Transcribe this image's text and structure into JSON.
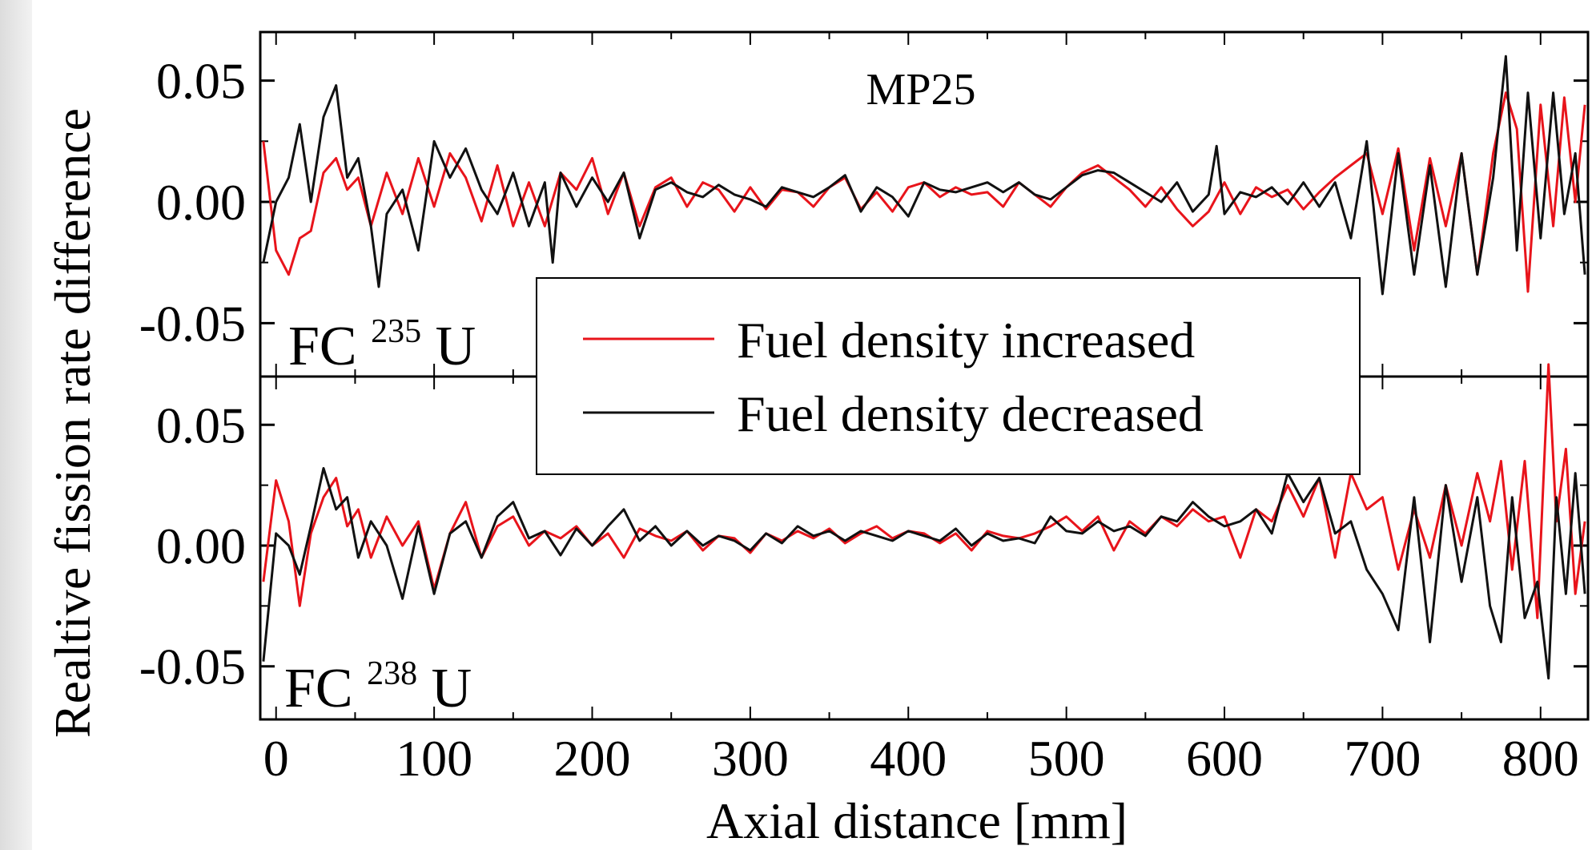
{
  "chart_data": {
    "type": "line",
    "title": "MP25",
    "xlabel": "Axial distance [mm]",
    "ylabel": "Realtive fission rate difference",
    "xlim": [
      -10,
      830
    ],
    "x_ticks": [
      "0",
      "100",
      "200",
      "300",
      "400",
      "500",
      "600",
      "700",
      "800"
    ],
    "y_tick_labels": [
      "0.05",
      "0.00",
      "-0.05"
    ],
    "legend": {
      "placement": "center, overlapping both panels",
      "entries": [
        "Fuel density increased",
        "Fuel density decreased"
      ]
    },
    "colors": {
      "increased": "#e8141b",
      "decreased": "#111111"
    },
    "panels": [
      {
        "label_prefix": "FC",
        "label_isotope_mass": "235",
        "label_isotope_symbol": "U",
        "ylim": [
          -0.072,
          0.07
        ],
        "series": [
          {
            "name": "Fuel density increased",
            "x": [
              -8,
              0,
              8,
              15,
              22,
              30,
              38,
              45,
              52,
              60,
              70,
              80,
              90,
              100,
              110,
              120,
              130,
              140,
              150,
              160,
              170,
              180,
              190,
              200,
              210,
              220,
              230,
              240,
              250,
              260,
              270,
              280,
              290,
              300,
              310,
              320,
              330,
              340,
              350,
              360,
              370,
              380,
              390,
              400,
              410,
              420,
              430,
              440,
              450,
              460,
              470,
              480,
              490,
              500,
              510,
              520,
              530,
              540,
              550,
              560,
              570,
              580,
              590,
              600,
              610,
              620,
              630,
              640,
              650,
              660,
              670,
              680,
              690,
              700,
              710,
              720,
              730,
              740,
              750,
              760,
              770,
              778,
              785,
              792,
              800,
              808,
              815,
              822,
              828
            ],
            "y": [
              0.025,
              -0.02,
              -0.03,
              -0.015,
              -0.012,
              0.012,
              0.018,
              0.005,
              0.01,
              -0.01,
              0.012,
              -0.005,
              0.018,
              -0.002,
              0.02,
              0.01,
              -0.008,
              0.015,
              -0.01,
              0.008,
              -0.01,
              0.012,
              0.005,
              0.018,
              -0.005,
              0.012,
              -0.01,
              0.006,
              0.01,
              -0.002,
              0.008,
              0.005,
              -0.004,
              0.006,
              -0.003,
              0.005,
              0.004,
              -0.002,
              0.006,
              0.01,
              -0.003,
              0.004,
              -0.004,
              0.006,
              0.008,
              0.002,
              0.006,
              0.003,
              0.004,
              -0.002,
              0.008,
              0.003,
              -0.002,
              0.006,
              0.012,
              0.015,
              0.01,
              0.005,
              -0.002,
              0.006,
              -0.003,
              -0.01,
              -0.004,
              0.008,
              -0.005,
              0.006,
              0.002,
              0.005,
              -0.003,
              0.004,
              0.01,
              0.015,
              0.02,
              -0.005,
              0.022,
              -0.02,
              0.018,
              -0.01,
              0.02,
              -0.03,
              0.02,
              0.045,
              0.03,
              -0.037,
              0.04,
              -0.01,
              0.043,
              0.0,
              0.04
            ]
          },
          {
            "name": "Fuel density decreased",
            "x": [
              -8,
              0,
              8,
              15,
              22,
              30,
              38,
              45,
              52,
              60,
              65,
              70,
              80,
              90,
              100,
              110,
              120,
              130,
              140,
              150,
              160,
              170,
              175,
              180,
              190,
              200,
              210,
              220,
              230,
              240,
              250,
              260,
              270,
              280,
              290,
              300,
              310,
              320,
              330,
              340,
              350,
              360,
              370,
              380,
              390,
              400,
              410,
              420,
              430,
              440,
              450,
              460,
              470,
              480,
              490,
              500,
              510,
              520,
              530,
              540,
              550,
              560,
              570,
              580,
              590,
              595,
              600,
              610,
              620,
              630,
              640,
              650,
              660,
              670,
              680,
              690,
              700,
              710,
              720,
              730,
              740,
              750,
              760,
              770,
              778,
              785,
              792,
              800,
              808,
              815,
              822,
              828
            ],
            "y": [
              -0.025,
              0.0,
              0.01,
              0.032,
              0.0,
              0.035,
              0.048,
              0.01,
              0.018,
              -0.01,
              -0.035,
              -0.005,
              0.005,
              -0.02,
              0.025,
              0.01,
              0.022,
              0.005,
              -0.005,
              0.012,
              -0.01,
              0.008,
              -0.025,
              0.012,
              -0.002,
              0.01,
              0.0,
              0.012,
              -0.015,
              0.005,
              0.008,
              0.004,
              0.002,
              0.007,
              0.003,
              0.001,
              -0.002,
              0.006,
              0.004,
              0.002,
              0.006,
              0.011,
              -0.004,
              0.006,
              0.002,
              -0.006,
              0.008,
              0.005,
              0.004,
              0.006,
              0.008,
              0.004,
              0.008,
              0.003,
              0.001,
              0.006,
              0.011,
              0.013,
              0.012,
              0.008,
              0.004,
              0.0,
              0.008,
              -0.004,
              0.003,
              0.023,
              -0.005,
              0.004,
              0.002,
              0.006,
              -0.001,
              0.008,
              -0.002,
              0.008,
              -0.015,
              0.025,
              -0.038,
              0.02,
              -0.03,
              0.015,
              -0.035,
              0.02,
              -0.03,
              0.01,
              0.06,
              -0.02,
              0.045,
              -0.015,
              0.045,
              -0.005,
              0.02,
              -0.03
            ]
          }
        ]
      },
      {
        "label_prefix": "FC",
        "label_isotope_mass": "238",
        "label_isotope_symbol": "U",
        "ylim": [
          -0.072,
          0.07
        ],
        "series": [
          {
            "name": "Fuel density increased",
            "x": [
              -8,
              0,
              8,
              15,
              22,
              30,
              38,
              45,
              52,
              60,
              70,
              80,
              90,
              100,
              110,
              120,
              130,
              140,
              150,
              160,
              170,
              180,
              190,
              200,
              210,
              220,
              230,
              240,
              250,
              260,
              270,
              280,
              290,
              300,
              310,
              320,
              330,
              340,
              350,
              360,
              370,
              380,
              390,
              400,
              410,
              420,
              430,
              440,
              450,
              460,
              470,
              480,
              490,
              500,
              510,
              520,
              530,
              540,
              550,
              560,
              570,
              580,
              590,
              600,
              610,
              620,
              630,
              640,
              650,
              660,
              670,
              680,
              690,
              700,
              710,
              720,
              730,
              740,
              750,
              760,
              768,
              775,
              782,
              790,
              798,
              805,
              810,
              816,
              822,
              828
            ],
            "y": [
              -0.015,
              0.027,
              0.01,
              -0.025,
              0.005,
              0.02,
              0.028,
              0.008,
              0.015,
              -0.005,
              0.012,
              0.0,
              0.01,
              -0.018,
              0.005,
              0.018,
              -0.005,
              0.008,
              0.012,
              0.0,
              0.006,
              0.003,
              0.008,
              0.0,
              0.005,
              -0.005,
              0.007,
              0.004,
              0.002,
              0.006,
              -0.002,
              0.004,
              0.003,
              -0.003,
              0.005,
              0.002,
              0.006,
              0.003,
              0.007,
              0.001,
              0.005,
              0.008,
              0.003,
              0.006,
              0.005,
              0.001,
              0.005,
              -0.002,
              0.006,
              0.004,
              0.003,
              0.005,
              0.008,
              0.012,
              0.006,
              0.012,
              -0.002,
              0.01,
              0.005,
              0.012,
              0.008,
              0.015,
              0.01,
              0.012,
              -0.005,
              0.015,
              0.01,
              0.025,
              0.012,
              0.028,
              -0.005,
              0.03,
              0.015,
              0.02,
              -0.01,
              0.015,
              -0.005,
              0.025,
              0.0,
              0.03,
              0.01,
              0.035,
              -0.01,
              0.035,
              -0.03,
              0.075,
              0.01,
              0.04,
              -0.02,
              0.01
            ]
          },
          {
            "name": "Fuel density decreased",
            "x": [
              -8,
              0,
              8,
              15,
              22,
              30,
              38,
              45,
              52,
              60,
              70,
              80,
              90,
              100,
              110,
              120,
              130,
              140,
              150,
              160,
              170,
              180,
              190,
              200,
              210,
              220,
              230,
              240,
              250,
              260,
              270,
              280,
              290,
              300,
              310,
              320,
              330,
              340,
              350,
              360,
              370,
              380,
              390,
              400,
              410,
              420,
              430,
              440,
              450,
              460,
              470,
              480,
              490,
              500,
              510,
              520,
              530,
              540,
              550,
              560,
              570,
              580,
              590,
              600,
              610,
              620,
              630,
              640,
              650,
              660,
              670,
              680,
              690,
              700,
              710,
              720,
              730,
              740,
              750,
              760,
              768,
              775,
              782,
              790,
              798,
              805,
              810,
              816,
              822,
              828
            ],
            "y": [
              -0.048,
              0.005,
              0.0,
              -0.012,
              0.008,
              0.032,
              0.015,
              0.02,
              -0.005,
              0.01,
              0.0,
              -0.022,
              0.008,
              -0.02,
              0.005,
              0.01,
              -0.005,
              0.012,
              0.018,
              0.003,
              0.006,
              -0.004,
              0.007,
              0.0,
              0.008,
              0.015,
              0.002,
              0.008,
              0.0,
              0.006,
              0.0,
              0.004,
              0.002,
              -0.002,
              0.005,
              0.001,
              0.008,
              0.004,
              0.006,
              0.002,
              0.006,
              0.004,
              0.002,
              0.006,
              0.004,
              0.002,
              0.007,
              0.0,
              0.005,
              0.002,
              0.003,
              0.001,
              0.012,
              0.006,
              0.005,
              0.01,
              0.006,
              0.008,
              0.004,
              0.012,
              0.01,
              0.018,
              0.012,
              0.008,
              0.01,
              0.015,
              0.005,
              0.03,
              0.018,
              0.028,
              0.005,
              0.01,
              -0.01,
              -0.02,
              -0.035,
              0.02,
              -0.04,
              0.025,
              -0.015,
              0.02,
              -0.025,
              -0.04,
              0.02,
              -0.03,
              -0.015,
              -0.055,
              0.02,
              -0.02,
              0.03,
              -0.02
            ]
          }
        ]
      }
    ]
  }
}
